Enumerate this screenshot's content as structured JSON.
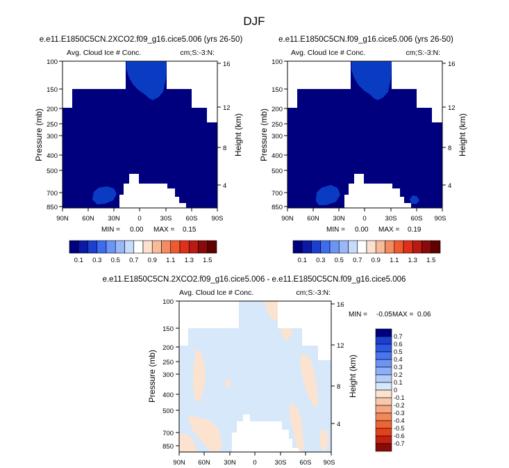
{
  "figure_title": "DJF",
  "colors": {
    "background": "#ffffff",
    "mean_fill_dark": "#00007f",
    "mean_fill_blob": "#0a3cc3",
    "diff_blue": "#d6e8fa",
    "diff_tan": "#fce3d0",
    "axis": "#000000"
  },
  "mean_colorbar": {
    "colors": [
      "#00007f",
      "#0b1aa6",
      "#1d3fd0",
      "#3d6cf0",
      "#6b95f5",
      "#98b8f8",
      "#c7dbfb",
      "#ffffff",
      "#fde1cf",
      "#f8bb9a",
      "#f48b63",
      "#ef5a30",
      "#e0301c",
      "#b91a12",
      "#8a0a09",
      "#600000"
    ],
    "labels": [
      "0.1",
      "0.3",
      "0.5",
      "0.7",
      "0.9",
      "1.1",
      "1.3",
      "1.5"
    ]
  },
  "diff_colorbar": {
    "colors": [
      "#00007f",
      "#1d3fd0",
      "#2d58e6",
      "#4a75f0",
      "#6b95f5",
      "#8eaef7",
      "#b5cdfa",
      "#d6e8fa",
      "#fce3d0",
      "#f9c8ad",
      "#f5a882",
      "#f28759",
      "#ee6534",
      "#e3411c",
      "#c32010",
      "#8a0a09"
    ],
    "labels": [
      "0.7",
      "0.6",
      "0.5",
      "0.4",
      "0.3",
      "0.2",
      "0.1",
      "0",
      "-0.1",
      "-0.2",
      "-0.3",
      "-0.4",
      "-0.5",
      "-0.6",
      "-0.7"
    ]
  },
  "chart_data": [
    {
      "type": "heatmap",
      "title": "e.e11.E1850C5CN.2XCO2.f09_g16.cice5.006 (yrs 26-50)",
      "subtitle_left": "Avg. Cloud Ice # Conc.",
      "subtitle_right": "cm;S:-3:N:",
      "xlabel": "",
      "ylabel": "Pressure (mb)",
      "ylabel_right": "Height (km)",
      "x_ticks": [
        "90N",
        "60N",
        "30N",
        "0",
        "30S",
        "60S",
        "90S"
      ],
      "y_ticks": [
        "100",
        "150",
        "200",
        "250",
        "300",
        "400",
        "500",
        "700",
        "850"
      ],
      "y_right_ticks": [
        "16",
        "12",
        "8",
        "4"
      ],
      "min_label": "MIN =",
      "min_value": "0.00",
      "max_label": "MAX =",
      "max_value": "0.15"
    },
    {
      "type": "heatmap",
      "title": "e.e11.E1850C5CN.f09_g16.cice5.006 (yrs 26-50)",
      "subtitle_left": "Avg. Cloud Ice # Conc.",
      "subtitle_right": "cm;S:-3:N:",
      "xlabel": "",
      "ylabel": "Pressure (mb)",
      "ylabel_right": "Height (km)",
      "x_ticks": [
        "90N",
        "60N",
        "30N",
        "0",
        "30S",
        "60S",
        "90S"
      ],
      "y_ticks": [
        "100",
        "150",
        "200",
        "250",
        "300",
        "400",
        "500",
        "700",
        "850"
      ],
      "y_right_ticks": [
        "16",
        "12",
        "8",
        "4"
      ],
      "min_label": "MIN =",
      "min_value": "0.00",
      "max_label": "MAX =",
      "max_value": "0.19"
    },
    {
      "type": "heatmap",
      "title": "e.e11.E1850C5CN.2XCO2.f09_g16.cice5.006 - e.e11.E1850C5CN.f09_g16.cice5.006",
      "subtitle_left": "Avg. Cloud Ice # Conc.",
      "subtitle_right": "cm;S:-3:N:",
      "xlabel": "",
      "ylabel": "Pressure (mb)",
      "ylabel_right": "Height (km)",
      "x_ticks": [
        "90N",
        "60N",
        "30N",
        "0",
        "30S",
        "60S",
        "90S"
      ],
      "y_ticks": [
        "100",
        "150",
        "200",
        "250",
        "300",
        "400",
        "500",
        "700",
        "850"
      ],
      "y_right_ticks": [
        "16",
        "12",
        "8",
        "4"
      ],
      "min_label": "MIN =",
      "min_value": "-0.05",
      "max_label": "MAX =",
      "max_value": "0.06"
    }
  ]
}
